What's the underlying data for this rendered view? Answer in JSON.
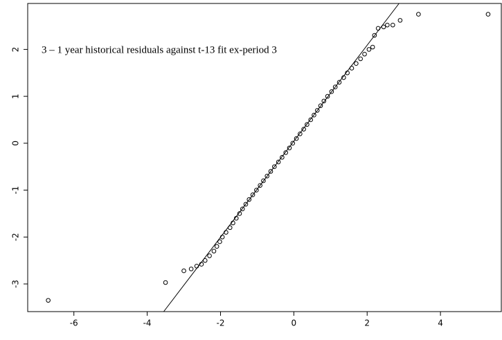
{
  "chart_data": {
    "type": "scatter",
    "annotation": "3 – 1 year historical residuals against t-13 fit ex-period 3",
    "xlim": [
      -7.26,
      5.66
    ],
    "ylim": [
      -3.59,
      2.98
    ],
    "xticks": [
      -6,
      -4,
      -2,
      0,
      2,
      4
    ],
    "yticks": [
      -3,
      -2,
      -1,
      0,
      1,
      2
    ],
    "color": "#000000",
    "points": {
      "x": [
        -6.7,
        -3.5,
        -3.0,
        -2.8,
        -2.65,
        -2.52,
        -2.42,
        -2.3,
        -2.18,
        -2.1,
        -2.02,
        -1.95,
        -1.85,
        -1.74,
        -1.66,
        -1.57,
        -1.48,
        -1.4,
        -1.31,
        -1.22,
        -1.12,
        -1.02,
        -0.92,
        -0.83,
        -0.73,
        -0.63,
        -0.53,
        -0.42,
        -0.32,
        -0.22,
        -0.12,
        -0.03,
        0.07,
        0.17,
        0.27,
        0.36,
        0.46,
        0.55,
        0.64,
        0.73,
        0.82,
        0.92,
        1.03,
        1.13,
        1.24,
        1.36,
        1.46,
        1.58,
        1.7,
        1.82,
        1.93,
        2.05,
        2.15,
        2.2,
        2.3,
        2.45,
        2.55,
        2.7,
        2.9,
        3.4,
        5.3
      ],
      "y": [
        -3.35,
        -2.97,
        -2.72,
        -2.68,
        -2.62,
        -2.58,
        -2.5,
        -2.4,
        -2.3,
        -2.2,
        -2.1,
        -2.0,
        -1.9,
        -1.8,
        -1.7,
        -1.6,
        -1.5,
        -1.4,
        -1.3,
        -1.2,
        -1.1,
        -1.0,
        -0.9,
        -0.8,
        -0.7,
        -0.6,
        -0.5,
        -0.4,
        -0.3,
        -0.2,
        -0.1,
        0,
        0.1,
        0.2,
        0.3,
        0.4,
        0.5,
        0.6,
        0.7,
        0.8,
        0.9,
        1.0,
        1.1,
        1.2,
        1.3,
        1.4,
        1.5,
        1.6,
        1.7,
        1.8,
        1.9,
        2.0,
        2.05,
        2.3,
        2.45,
        2.48,
        2.52,
        2.52,
        2.62,
        2.75,
        2.75
      ]
    },
    "line": {
      "x": [
        -3.55,
        2.87
      ],
      "y": [
        -3.59,
        2.98
      ]
    }
  }
}
